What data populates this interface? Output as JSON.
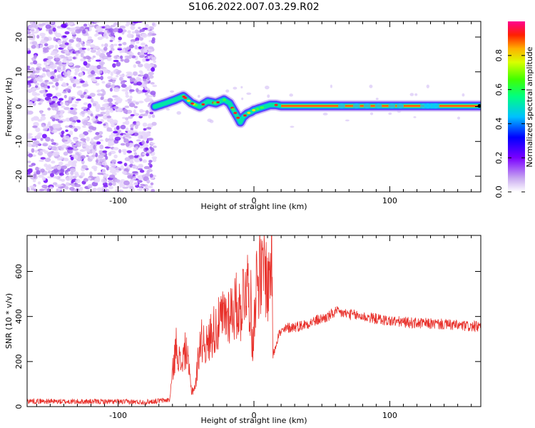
{
  "title": "S106.2022.007.03.29.R02",
  "chart_data": [
    {
      "type": "heatmap",
      "xlabel": "Height of straight line (km)",
      "ylabel": "Frequency (Hz)",
      "xlim": [
        -167,
        167
      ],
      "ylim": [
        -24.5,
        24.5
      ],
      "x_ticks": [
        -100,
        0,
        100
      ],
      "y_ticks": [
        -20,
        -10,
        0,
        10,
        20
      ],
      "colorbar": {
        "label": "Normalized spectral amplitude",
        "range": [
          0,
          1
        ],
        "ticks": [
          "0.0",
          "0.2",
          "0.4",
          "0.6",
          "0.8"
        ]
      },
      "noise_region_x": [
        -167,
        -73
      ],
      "signal_track": {
        "x": [
          -73,
          -65,
          -58,
          -52,
          -46,
          -40,
          -34,
          -28,
          -22,
          -18,
          -15,
          -12,
          -10,
          -8,
          -5,
          -2,
          0,
          4,
          8,
          12,
          16,
          20,
          30,
          60,
          80,
          100,
          120,
          140,
          167
        ],
        "y": [
          0,
          1,
          2,
          3,
          1,
          0,
          1.5,
          1,
          2,
          1,
          -1,
          -3,
          -4.5,
          -3,
          -2,
          -1.5,
          -1,
          -0.5,
          0,
          0.5,
          0.5,
          0.2,
          0.2,
          0.2,
          0.2,
          0.2,
          0.2,
          0.2,
          0.2
        ]
      }
    },
    {
      "type": "line",
      "xlabel": "Height of straight line (km)",
      "ylabel": "SNR (10 * v/v)",
      "xlim": [
        -167,
        167
      ],
      "ylim": [
        0,
        760
      ],
      "x_ticks": [
        -100,
        0,
        100
      ],
      "y_ticks": [
        0,
        200,
        400,
        600
      ],
      "series": [
        {
          "color": "#e8302a",
          "x": [
            -167,
            -140,
            -110,
            -80,
            -62,
            -60,
            -57,
            -54,
            -50,
            -46,
            -43,
            -40,
            -37,
            -34,
            -32,
            -30,
            -26,
            -22,
            -18,
            -14,
            -12,
            -10,
            -8,
            -6,
            -4,
            -2,
            -1,
            0,
            2,
            4,
            6,
            8,
            10,
            12,
            13,
            14,
            18,
            25,
            35,
            45,
            55,
            60,
            70,
            80,
            90,
            100,
            110,
            120,
            130,
            140,
            150,
            160,
            167
          ],
          "y": [
            25,
            22,
            22,
            20,
            30,
            150,
            280,
            180,
            260,
            70,
            90,
            280,
            300,
            260,
            320,
            340,
            360,
            400,
            420,
            440,
            450,
            420,
            500,
            560,
            520,
            440,
            200,
            430,
            560,
            600,
            560,
            640,
            520,
            620,
            740,
            230,
            320,
            350,
            360,
            380,
            400,
            420,
            410,
            400,
            390,
            380,
            375,
            370,
            368,
            365,
            360,
            355,
            355
          ]
        }
      ]
    }
  ]
}
